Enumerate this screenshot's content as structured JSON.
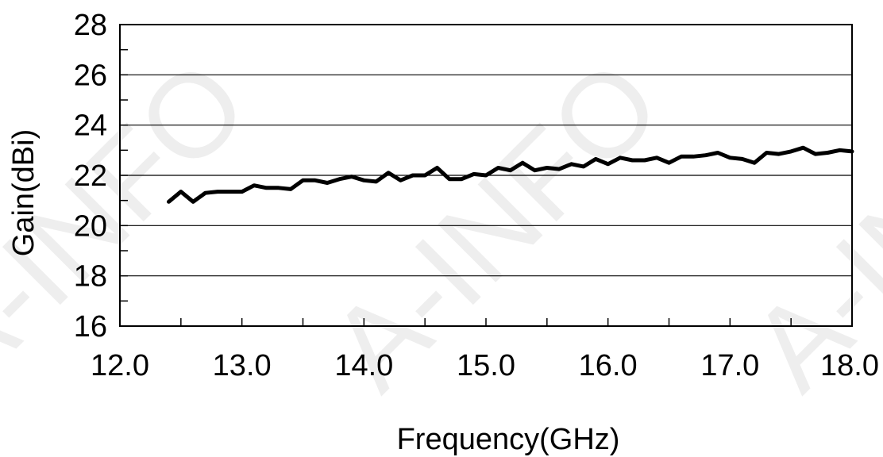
{
  "chart_data": {
    "type": "line",
    "title": "",
    "xlabel": "Frequency(GHz)",
    "ylabel": "Gain(dBi)",
    "xlim": [
      12.0,
      18.0
    ],
    "ylim": [
      16,
      28
    ],
    "x_ticks": [
      "12.0",
      "13.0",
      "14.0",
      "15.0",
      "16.0",
      "17.0",
      "18.0"
    ],
    "y_ticks": [
      "16",
      "18",
      "20",
      "22",
      "24",
      "26",
      "28"
    ],
    "grid": "horizontal",
    "line_color": "#000000",
    "series": [
      {
        "x": [
          12.4,
          12.5,
          12.6,
          12.7,
          12.8,
          12.9,
          13.0,
          13.1,
          13.2,
          13.3,
          13.4,
          13.5,
          13.6,
          13.7,
          13.8,
          13.9,
          14.0,
          14.1,
          14.2,
          14.3,
          14.4,
          14.5,
          14.6,
          14.7,
          14.8,
          14.9,
          15.0,
          15.1,
          15.2,
          15.3,
          15.4,
          15.5,
          15.6,
          15.7,
          15.8,
          15.9,
          16.0,
          16.1,
          16.2,
          16.3,
          16.4,
          16.5,
          16.6,
          16.7,
          16.8,
          16.9,
          17.0,
          17.1,
          17.2,
          17.3,
          17.4,
          17.5,
          17.6,
          17.7,
          17.8,
          17.9,
          18.0
        ],
        "values": [
          20.95,
          21.35,
          20.95,
          21.3,
          21.35,
          21.35,
          21.35,
          21.6,
          21.5,
          21.5,
          21.45,
          21.8,
          21.8,
          21.7,
          21.85,
          21.95,
          21.8,
          21.75,
          22.1,
          21.8,
          22.0,
          22.0,
          22.3,
          21.85,
          21.85,
          22.05,
          22.0,
          22.3,
          22.2,
          22.5,
          22.2,
          22.3,
          22.25,
          22.45,
          22.35,
          22.65,
          22.45,
          22.7,
          22.6,
          22.6,
          22.7,
          22.5,
          22.75,
          22.75,
          22.8,
          22.9,
          22.7,
          22.65,
          22.5,
          22.9,
          22.85,
          22.95,
          23.1,
          22.85,
          22.9,
          23.0,
          22.95
        ]
      }
    ]
  },
  "watermark": {
    "text": "A-INFO"
  }
}
